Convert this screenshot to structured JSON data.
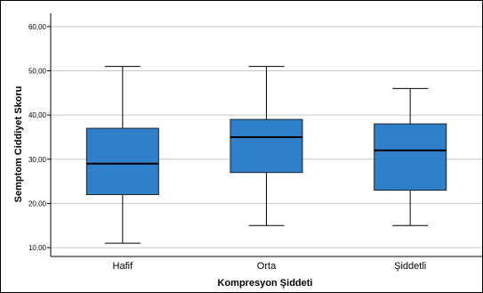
{
  "chart_data": {
    "type": "boxplot",
    "xlabel": "Kompresyon Şiddeti",
    "ylabel": "Semptom Ciddiyet Skoru",
    "ylim": [
      8,
      63
    ],
    "yticks": [
      10,
      20,
      30,
      40,
      50,
      60
    ],
    "ytick_labels": [
      "10,00",
      "20,00",
      "30,00",
      "40,00",
      "50,00",
      "60,00"
    ],
    "grid": "horizontal",
    "categories": [
      "Hafif",
      "Orta",
      "Şiddetli"
    ],
    "boxes": [
      {
        "name": "Hafif",
        "min": 11,
        "q1": 22,
        "median": 29,
        "q3": 37,
        "max": 51
      },
      {
        "name": "Orta",
        "min": 15,
        "q1": 27,
        "median": 35,
        "q3": 39,
        "max": 51
      },
      {
        "name": "Şiddetli",
        "min": 15,
        "q1": 23,
        "median": 32,
        "q3": 38,
        "max": 46
      }
    ],
    "box_color": "#2f7fcb",
    "box_edge_color": "#1f1f1f",
    "grid_color": "#c8c8c8"
  }
}
